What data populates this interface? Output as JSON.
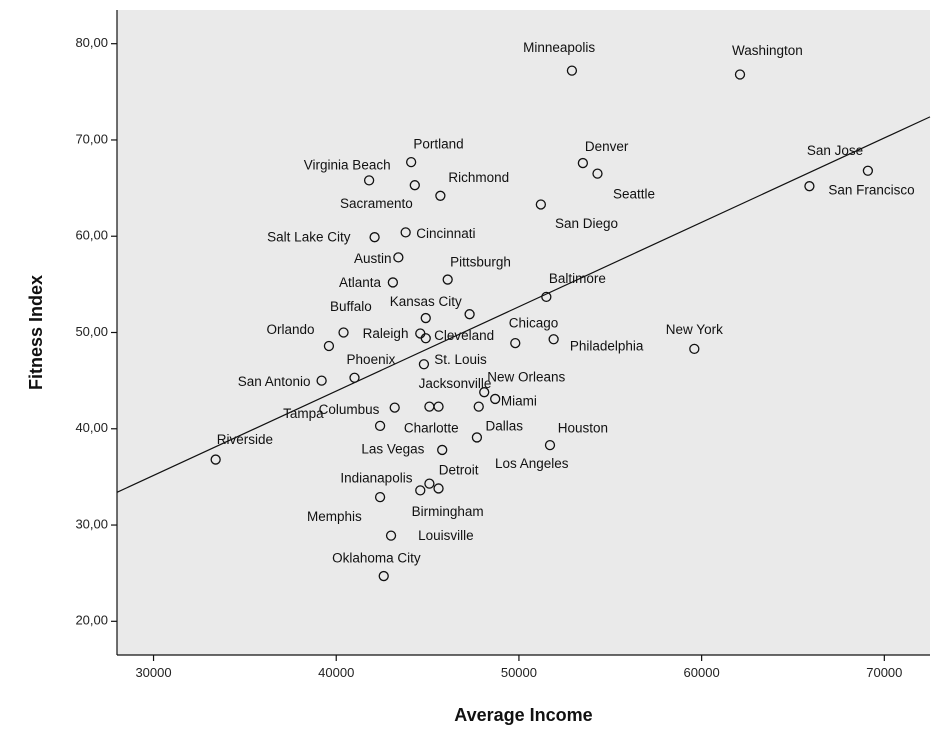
{
  "chart_data": {
    "type": "scatter",
    "xlabel": "Average Income",
    "ylabel": "Fitness Index",
    "xlim": [
      28000,
      72500
    ],
    "ylim": [
      16.5,
      83.5
    ],
    "x_ticks": [
      30000,
      40000,
      50000,
      60000,
      70000
    ],
    "x_tick_labels": [
      "30000",
      "40000",
      "50000",
      "60000",
      "70000"
    ],
    "y_ticks": [
      20,
      30,
      40,
      50,
      60,
      70,
      80
    ],
    "y_tick_labels": [
      "20,00",
      "30,00",
      "40,00",
      "50,00",
      "60,00",
      "70,00",
      "80,00"
    ],
    "grid": false,
    "background": "#eaeaea",
    "fit_line": {
      "x": [
        28000,
        72500
      ],
      "y": [
        33.4,
        72.4
      ]
    },
    "points": [
      {
        "label": "Minneapolis",
        "x": 52900,
        "y": 77.2
      },
      {
        "label": "Washington",
        "x": 62100,
        "y": 76.8
      },
      {
        "label": "Portland",
        "x": 44100,
        "y": 67.7
      },
      {
        "label": "Virginia Beach",
        "x": 41800,
        "y": 65.8
      },
      {
        "label": "Richmond",
        "x": 45700,
        "y": 64.2
      },
      {
        "label": "Sacramento",
        "x": 44300,
        "y": 65.3
      },
      {
        "label": "Denver",
        "x": 53500,
        "y": 67.6
      },
      {
        "label": "Seattle",
        "x": 54300,
        "y": 66.5
      },
      {
        "label": "San Jose",
        "x": 69100,
        "y": 66.8
      },
      {
        "label": "San Francisco",
        "x": 65900,
        "y": 65.2
      },
      {
        "label": "San Diego",
        "x": 51200,
        "y": 63.3
      },
      {
        "label": "Salt Lake City",
        "x": 42100,
        "y": 59.9
      },
      {
        "label": "Cincinnati",
        "x": 43800,
        "y": 60.4
      },
      {
        "label": "Austin",
        "x": 43400,
        "y": 57.8
      },
      {
        "label": "Pittsburgh",
        "x": 46100,
        "y": 55.5
      },
      {
        "label": "Atlanta",
        "x": 43100,
        "y": 55.2
      },
      {
        "label": "Baltimore",
        "x": 51500,
        "y": 53.7
      },
      {
        "label": "Kansas City",
        "x": 47300,
        "y": 51.9
      },
      {
        "label": "Buffalo",
        "x": 44900,
        "y": 51.5
      },
      {
        "label": "Orlando",
        "x": 40400,
        "y": 50.0
      },
      {
        "label": "Raleigh",
        "x": 44600,
        "y": 49.9
      },
      {
        "label": "Cleveland",
        "x": 44900,
        "y": 49.4
      },
      {
        "label": "Chicago",
        "x": 49800,
        "y": 48.9
      },
      {
        "label": "Philadelphia",
        "x": 51900,
        "y": 49.3
      },
      {
        "label": "New York",
        "x": 59600,
        "y": 48.3
      },
      {
        "label": "Phoenix",
        "x": 39600,
        "y": 48.6
      },
      {
        "label": "St. Louis",
        "x": 44800,
        "y": 46.7
      },
      {
        "label": "San Antonio",
        "x": 39200,
        "y": 45.0
      },
      {
        "label": "Jacksonville",
        "x": 41000,
        "y": 45.3
      },
      {
        "label": "New Orleans",
        "x": 48100,
        "y": 43.8
      },
      {
        "label": "Miami",
        "x": 48700,
        "y": 43.1
      },
      {
        "label": "Columbus",
        "x": 43200,
        "y": 42.2
      },
      {
        "label": "Tampa",
        "x": 42400,
        "y": 40.3
      },
      {
        "label": "Charlotte",
        "x": 45100,
        "y": 42.3
      },
      {
        "label": "Dallas",
        "x": 45600,
        "y": 42.3
      },
      {
        "label": "Houston",
        "x": 47800,
        "y": 42.3
      },
      {
        "label": "Riverside",
        "x": 33400,
        "y": 36.8
      },
      {
        "label": "Las Vegas",
        "x": 45800,
        "y": 37.8
      },
      {
        "label": "Los Angeles",
        "x": 51700,
        "y": 38.3
      },
      {
        "label": "Detroit",
        "x": 47700,
        "y": 39.1
      },
      {
        "label": "Indianapolis",
        "x": 45100,
        "y": 34.3
      },
      {
        "label": "Birmingham",
        "x": 45600,
        "y": 33.8
      },
      {
        "label": "Memphis",
        "x": 42400,
        "y": 32.9
      },
      {
        "label": "Memphis-2",
        "x": 44600,
        "y": 33.6
      },
      {
        "label": "Louisville",
        "x": 43000,
        "y": 28.9
      },
      {
        "label": "Oklahoma City",
        "x": 42600,
        "y": 24.7
      }
    ],
    "labels": [
      {
        "text": "Minneapolis",
        "x": 52200,
        "y": 79.5
      },
      {
        "text": "Washington",
        "x": 63600,
        "y": 79.2
      },
      {
        "text": "Portland",
        "x": 45600,
        "y": 69.5
      },
      {
        "text": "Virginia Beach",
        "x": 40600,
        "y": 67.3
      },
      {
        "text": "Richmond",
        "x": 47800,
        "y": 66.0
      },
      {
        "text": "Sacramento",
        "x": 42200,
        "y": 63.3
      },
      {
        "text": "Denver",
        "x": 54800,
        "y": 69.2
      },
      {
        "text": "Seattle",
        "x": 56300,
        "y": 64.3
      },
      {
        "text": "San Jose",
        "x": 67300,
        "y": 68.8
      },
      {
        "text": "San Francisco",
        "x": 69300,
        "y": 64.7
      },
      {
        "text": "San Diego",
        "x": 53700,
        "y": 61.2
      },
      {
        "text": "Salt Lake City",
        "x": 38500,
        "y": 59.8
      },
      {
        "text": "Cincinnati",
        "x": 46000,
        "y": 60.2
      },
      {
        "text": "Austin",
        "x": 42000,
        "y": 57.6
      },
      {
        "text": "Pittsburgh",
        "x": 47900,
        "y": 57.2
      },
      {
        "text": "Atlanta",
        "x": 41300,
        "y": 55.1
      },
      {
        "text": "Baltimore",
        "x": 53200,
        "y": 55.5
      },
      {
        "text": "Kansas City",
        "x": 44900,
        "y": 53.1
      },
      {
        "text": "Buffalo",
        "x": 40800,
        "y": 52.6
      },
      {
        "text": "Orlando",
        "x": 37500,
        "y": 50.2
      },
      {
        "text": "Raleigh",
        "x": 42700,
        "y": 49.8
      },
      {
        "text": "Cleveland",
        "x": 47000,
        "y": 49.6
      },
      {
        "text": "Chicago",
        "x": 50800,
        "y": 50.9
      },
      {
        "text": "Philadelphia",
        "x": 54800,
        "y": 48.5
      },
      {
        "text": "New York",
        "x": 59600,
        "y": 50.2
      },
      {
        "text": "Phoenix",
        "x": 41900,
        "y": 47.1
      },
      {
        "text": "St. Louis",
        "x": 46800,
        "y": 47.1
      },
      {
        "text": "San Antonio",
        "x": 36600,
        "y": 44.8
      },
      {
        "text": "Jacksonville",
        "x": 46500,
        "y": 44.6
      },
      {
        "text": "New Orleans",
        "x": 50400,
        "y": 45.3
      },
      {
        "text": "Miami",
        "x": 50000,
        "y": 42.8
      },
      {
        "text": "Columbus",
        "x": 40700,
        "y": 41.9
      },
      {
        "text": "Tampa",
        "x": 38200,
        "y": 41.5
      },
      {
        "text": "Charlotte",
        "x": 45200,
        "y": 40.0
      },
      {
        "text": "Dallas",
        "x": 49200,
        "y": 40.2
      },
      {
        "text": "Houston",
        "x": 53500,
        "y": 40.0
      },
      {
        "text": "Riverside",
        "x": 35000,
        "y": 38.8
      },
      {
        "text": "Las Vegas",
        "x": 43100,
        "y": 37.8
      },
      {
        "text": "Detroit",
        "x": 46700,
        "y": 35.6
      },
      {
        "text": "Los Angeles",
        "x": 50700,
        "y": 36.3
      },
      {
        "text": "Indianapolis",
        "x": 42200,
        "y": 34.8
      },
      {
        "text": "Birmingham",
        "x": 46100,
        "y": 31.3
      },
      {
        "text": "Memphis",
        "x": 39900,
        "y": 30.8
      },
      {
        "text": "Louisville",
        "x": 46000,
        "y": 28.8
      },
      {
        "text": "Oklahoma City",
        "x": 42200,
        "y": 26.5
      }
    ]
  }
}
